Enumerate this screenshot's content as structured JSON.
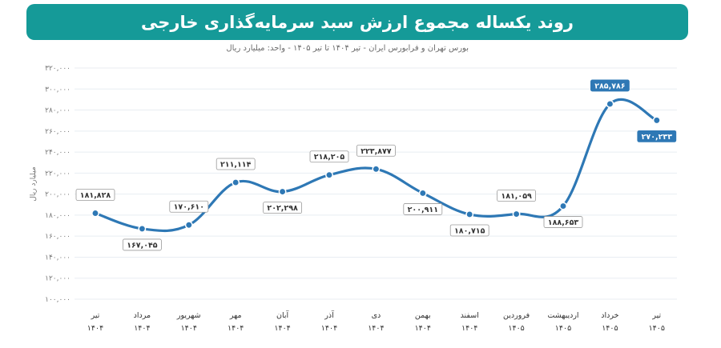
{
  "title": "روند یکساله مجموع ارزش سبد سرمایه‌گذاری خارجی",
  "subtitle": "بورس تهران و فرابورس ایران - تیر ۱۴۰۴ تا تیر ۱۴۰۵ - واحد: میلیارد ریال",
  "colors": {
    "title_bg": "#159a98",
    "line": "#2e78b5",
    "highlight_label_bg": "#2e78b5",
    "grid": "#e8edf2",
    "axis_text": "#777777"
  },
  "chart_data": {
    "type": "line",
    "title": "روند یکساله مجموع ارزش سبد سرمایه‌گذاری خارجی",
    "ylabel": "میلیارد ریال",
    "xlabel": "",
    "ylim": [
      100000,
      320000
    ],
    "yticks": [
      100000,
      120000,
      140000,
      160000,
      180000,
      200000,
      220000,
      240000,
      260000,
      280000,
      300000,
      320000
    ],
    "ytick_labels": [
      "۱۰۰,۰۰۰",
      "۱۲۰,۰۰۰",
      "۱۴۰,۰۰۰",
      "۱۶۰,۰۰۰",
      "۱۸۰,۰۰۰",
      "۲۰۰,۰۰۰",
      "۲۲۰,۰۰۰",
      "۲۴۰,۰۰۰",
      "۲۶۰,۰۰۰",
      "۲۸۰,۰۰۰",
      "۳۰۰,۰۰۰",
      "۳۲۰,۰۰۰"
    ],
    "grid": true,
    "categories": [
      {
        "month": "تیر",
        "year": "۱۴۰۴"
      },
      {
        "month": "مرداد",
        "year": "۱۴۰۴"
      },
      {
        "month": "شهریور",
        "year": "۱۴۰۴"
      },
      {
        "month": "مهر",
        "year": "۱۴۰۴"
      },
      {
        "month": "آبان",
        "year": "۱۴۰۴"
      },
      {
        "month": "آذر",
        "year": "۱۴۰۴"
      },
      {
        "month": "دی",
        "year": "۱۴۰۴"
      },
      {
        "month": "بهمن",
        "year": "۱۴۰۴"
      },
      {
        "month": "اسفند",
        "year": "۱۴۰۴"
      },
      {
        "month": "فروردین",
        "year": "۱۴۰۵"
      },
      {
        "month": "اردیبهشت",
        "year": "۱۴۰۵"
      },
      {
        "month": "خرداد",
        "year": "۱۴۰۵"
      },
      {
        "month": "تیر",
        "year": "۱۴۰۵"
      }
    ],
    "values": [
      181828,
      167045,
      170610,
      211114,
      202298,
      218205,
      223877,
      200911,
      180715,
      181059,
      188653,
      285786,
      270233
    ],
    "value_labels": [
      "۱۸۱,۸۲۸",
      "۱۶۷,۰۴۵",
      "۱۷۰,۶۱۰",
      "۲۱۱,۱۱۴",
      "۲۰۲,۲۹۸",
      "۲۱۸,۲۰۵",
      "۲۲۳,۸۷۷",
      "۲۰۰,۹۱۱",
      "۱۸۰,۷۱۵",
      "۱۸۱,۰۵۹",
      "۱۸۸,۶۵۳",
      "۲۸۵,۷۸۶",
      "۲۷۰,۲۳۳"
    ],
    "label_positions": [
      "above",
      "below",
      "above",
      "above",
      "below",
      "above",
      "above",
      "below",
      "below",
      "above",
      "below",
      "above",
      "below"
    ],
    "highlighted": [
      false,
      false,
      false,
      false,
      false,
      false,
      false,
      false,
      false,
      false,
      false,
      true,
      true
    ]
  }
}
